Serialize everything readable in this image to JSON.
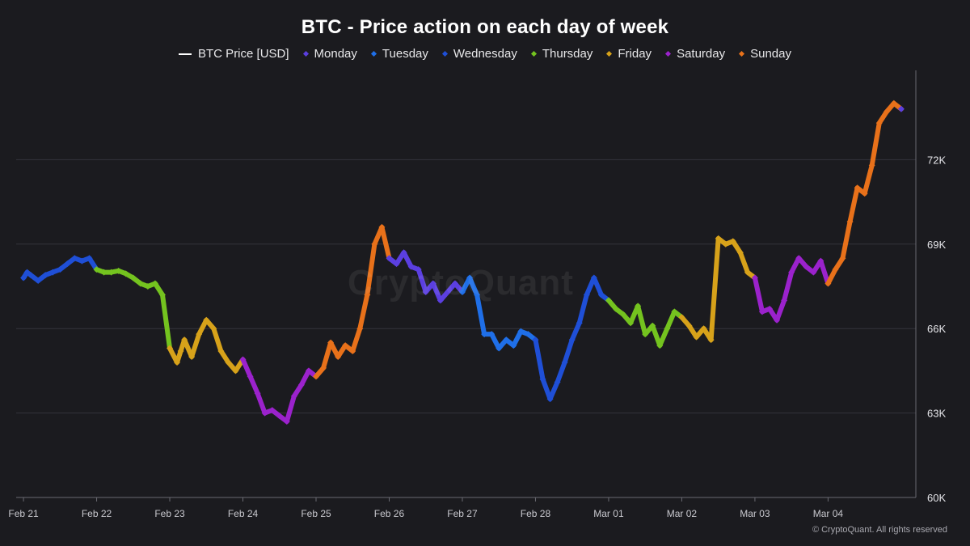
{
  "chart_data": {
    "type": "line",
    "title": "BTC - Price action on each day of week",
    "xlabel": "",
    "ylabel": "",
    "ylim": [
      60000,
      75000
    ],
    "y_ticks": [
      60000,
      63000,
      66000,
      69000,
      72000
    ],
    "y_tick_labels": [
      "60K",
      "63K",
      "66K",
      "69K",
      "72K"
    ],
    "x_tick_labels": [
      "Feb 21",
      "Feb 22",
      "Feb 23",
      "Feb 24",
      "Feb 25",
      "Feb 26",
      "Feb 27",
      "Feb 28",
      "Mar 01",
      "Mar 02",
      "Mar 03",
      "Mar 04"
    ],
    "x_start": "Feb 21",
    "x_range_days": [
      -0.1,
      12.2
    ],
    "legend": [
      {
        "name": "BTC Price [USD]",
        "color": "#ffffff",
        "marker": "line"
      },
      {
        "name": "Monday",
        "color": "#5b3fe0",
        "marker": "diamond"
      },
      {
        "name": "Tuesday",
        "color": "#1f6fe8",
        "marker": "diamond"
      },
      {
        "name": "Wednesday",
        "color": "#1f4fd6",
        "marker": "diamond"
      },
      {
        "name": "Thursday",
        "color": "#74c31f",
        "marker": "diamond"
      },
      {
        "name": "Friday",
        "color": "#d7a21a",
        "marker": "diamond"
      },
      {
        "name": "Saturday",
        "color": "#9b22cc",
        "marker": "diamond"
      },
      {
        "name": "Sunday",
        "color": "#e8711a",
        "marker": "diamond"
      }
    ],
    "series": [
      {
        "name": "BTC Price [USD]",
        "day": "all",
        "x": [
          0.0,
          0.05,
          0.1,
          0.2,
          0.3,
          0.4,
          0.5,
          0.6,
          0.7,
          0.8,
          0.9,
          1.0,
          1.1,
          1.2,
          1.3,
          1.4,
          1.5,
          1.6,
          1.7,
          1.8,
          1.9,
          2.0,
          2.1,
          2.15,
          2.2,
          2.3,
          2.4,
          2.5,
          2.6,
          2.7,
          2.8,
          2.9,
          3.0,
          3.1,
          3.2,
          3.3,
          3.4,
          3.5,
          3.6,
          3.7,
          3.8,
          3.9,
          4.0,
          4.1,
          4.2,
          4.3,
          4.4,
          4.5,
          4.6,
          4.7,
          4.8,
          4.9,
          5.0,
          5.1,
          5.2,
          5.3,
          5.4,
          5.5,
          5.6,
          5.7,
          5.8,
          5.9,
          6.0,
          6.1,
          6.2,
          6.3,
          6.4,
          6.5,
          6.6,
          6.7,
          6.8,
          6.9,
          7.0,
          7.1,
          7.2,
          7.3,
          7.4,
          7.5,
          7.6,
          7.7,
          7.8,
          7.9,
          8.0,
          8.1,
          8.2,
          8.3,
          8.4,
          8.5,
          8.6,
          8.7,
          8.8,
          8.9,
          9.0,
          9.1,
          9.2,
          9.3,
          9.4,
          9.5,
          9.6,
          9.7,
          9.8,
          9.9,
          10.0,
          10.1,
          10.2,
          10.3,
          10.4,
          10.5,
          10.6,
          10.7,
          10.8,
          10.9,
          11.0,
          11.1,
          11.2,
          11.3,
          11.4,
          11.5,
          11.6,
          11.7,
          11.8,
          11.9,
          12.0
        ],
        "y": [
          67800,
          68000,
          67900,
          67700,
          67900,
          68000,
          68100,
          68300,
          68500,
          68400,
          68500,
          68100,
          68000,
          68000,
          68050,
          67950,
          67800,
          67600,
          67500,
          67600,
          67200,
          65300,
          64800,
          65200,
          65600,
          65000,
          65800,
          66300,
          66000,
          65200,
          64800,
          64500,
          64900,
          64300,
          63700,
          63000,
          63100,
          62900,
          62700,
          63600,
          64000,
          64500,
          64300,
          64600,
          65500,
          65000,
          65400,
          65200,
          66000,
          67200,
          69000,
          69600,
          68500,
          68300,
          68700,
          68200,
          68100,
          67300,
          67600,
          67000,
          67300,
          67600,
          67300,
          67800,
          67200,
          65800,
          65800,
          65300,
          65600,
          65400,
          65900,
          65800,
          65600,
          64200,
          63500,
          64100,
          64800,
          65600,
          66200,
          67200,
          67800,
          67200,
          67000,
          66700,
          66500,
          66200,
          66800,
          65800,
          66100,
          65400,
          66000,
          66600,
          66400,
          66100,
          65700,
          66000,
          65600,
          69200,
          69000,
          69100,
          68700,
          68000,
          67800,
          66600,
          66700,
          66300,
          67000,
          68000,
          68500,
          68200,
          68000,
          68400,
          67600,
          68100,
          68500,
          69800,
          71000,
          70800,
          71800,
          73300,
          73700,
          74000,
          73800
        ]
      }
    ]
  },
  "watermark": "CryptoQuant",
  "copyright": "© CryptoQuant. All rights reserved"
}
